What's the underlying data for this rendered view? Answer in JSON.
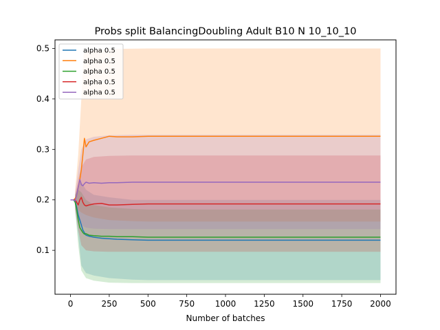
{
  "chart_data": {
    "type": "line",
    "title": "Probs split BalancingDoubling Adult B10 N 10_10_10",
    "xlabel": "Number of batches",
    "ylabel": "",
    "xlim": [
      -100,
      2100
    ],
    "ylim": [
      0.013,
      0.517
    ],
    "xticks": [
      0,
      250,
      500,
      750,
      1000,
      1250,
      1500,
      1750,
      2000
    ],
    "yticks": [
      0.1,
      0.2,
      0.3,
      0.4,
      0.5
    ],
    "ytick_labels": [
      "0.1",
      "0.2",
      "0.3",
      "0.4",
      "0.5"
    ],
    "grid": false,
    "legend_position": "top-left",
    "series": [
      {
        "name": "alpha 0.5",
        "color": "#1f77b4",
        "points": [
          [
            0,
            0.2
          ],
          [
            20,
            0.2
          ],
          [
            30,
            0.198
          ],
          [
            40,
            0.185
          ],
          [
            50,
            0.17
          ],
          [
            60,
            0.16
          ],
          [
            70,
            0.15
          ],
          [
            80,
            0.14
          ],
          [
            90,
            0.135
          ],
          [
            100,
            0.13
          ],
          [
            120,
            0.128
          ],
          [
            150,
            0.126
          ],
          [
            200,
            0.124
          ],
          [
            250,
            0.123
          ],
          [
            300,
            0.122
          ],
          [
            400,
            0.121
          ],
          [
            500,
            0.12
          ],
          [
            1000,
            0.12
          ],
          [
            2000,
            0.12
          ]
        ],
        "band_lower": [
          [
            30,
            0.18
          ],
          [
            50,
            0.13
          ],
          [
            70,
            0.07
          ],
          [
            100,
            0.055
          ],
          [
            150,
            0.05
          ],
          [
            250,
            0.045
          ],
          [
            400,
            0.042
          ],
          [
            500,
            0.041
          ],
          [
            1000,
            0.041
          ],
          [
            2000,
            0.041
          ]
        ],
        "band_upper": [
          [
            30,
            0.21
          ],
          [
            50,
            0.23
          ],
          [
            70,
            0.235
          ],
          [
            100,
            0.22
          ],
          [
            150,
            0.21
          ],
          [
            250,
            0.205
          ],
          [
            400,
            0.2
          ],
          [
            500,
            0.2
          ],
          [
            1000,
            0.2
          ],
          [
            2000,
            0.2
          ]
        ]
      },
      {
        "name": "alpha 0.5",
        "color": "#ff7f0e",
        "points": [
          [
            0,
            0.2
          ],
          [
            20,
            0.2
          ],
          [
            30,
            0.203
          ],
          [
            40,
            0.21
          ],
          [
            50,
            0.225
          ],
          [
            60,
            0.24
          ],
          [
            70,
            0.26
          ],
          [
            80,
            0.29
          ],
          [
            90,
            0.322
          ],
          [
            100,
            0.305
          ],
          [
            120,
            0.315
          ],
          [
            150,
            0.318
          ],
          [
            200,
            0.322
          ],
          [
            250,
            0.326
          ],
          [
            300,
            0.325
          ],
          [
            400,
            0.325
          ],
          [
            500,
            0.326
          ],
          [
            1000,
            0.326
          ],
          [
            2000,
            0.326
          ]
        ],
        "band_lower": [
          [
            30,
            0.19
          ],
          [
            50,
            0.18
          ],
          [
            70,
            0.175
          ],
          [
            100,
            0.17
          ],
          [
            150,
            0.165
          ],
          [
            250,
            0.16
          ],
          [
            400,
            0.158
          ],
          [
            500,
            0.157
          ],
          [
            1000,
            0.157
          ],
          [
            2000,
            0.157
          ]
        ],
        "band_upper": [
          [
            30,
            0.22
          ],
          [
            50,
            0.29
          ],
          [
            70,
            0.4
          ],
          [
            85,
            0.49
          ],
          [
            100,
            0.495
          ],
          [
            150,
            0.497
          ],
          [
            250,
            0.499
          ],
          [
            500,
            0.5
          ],
          [
            1000,
            0.5
          ],
          [
            2000,
            0.5
          ]
        ]
      },
      {
        "name": "alpha 0.5",
        "color": "#2ca02c",
        "points": [
          [
            0,
            0.2
          ],
          [
            20,
            0.2
          ],
          [
            30,
            0.195
          ],
          [
            40,
            0.18
          ],
          [
            50,
            0.16
          ],
          [
            60,
            0.145
          ],
          [
            70,
            0.14
          ],
          [
            80,
            0.135
          ],
          [
            90,
            0.132
          ],
          [
            100,
            0.133
          ],
          [
            120,
            0.13
          ],
          [
            150,
            0.129
          ],
          [
            200,
            0.128
          ],
          [
            250,
            0.128
          ],
          [
            300,
            0.127
          ],
          [
            400,
            0.127
          ],
          [
            500,
            0.126
          ],
          [
            1000,
            0.126
          ],
          [
            2000,
            0.126
          ]
        ],
        "band_lower": [
          [
            30,
            0.18
          ],
          [
            50,
            0.11
          ],
          [
            70,
            0.06
          ],
          [
            100,
            0.045
          ],
          [
            150,
            0.04
          ],
          [
            250,
            0.036
          ],
          [
            400,
            0.035
          ],
          [
            500,
            0.035
          ],
          [
            1000,
            0.035
          ],
          [
            2000,
            0.035
          ]
        ],
        "band_upper": [
          [
            30,
            0.21
          ],
          [
            50,
            0.22
          ],
          [
            70,
            0.215
          ],
          [
            100,
            0.2
          ],
          [
            150,
            0.19
          ],
          [
            250,
            0.185
          ],
          [
            400,
            0.182
          ],
          [
            500,
            0.181
          ],
          [
            1000,
            0.181
          ],
          [
            2000,
            0.181
          ]
        ]
      },
      {
        "name": "alpha 0.5",
        "color": "#d62728",
        "points": [
          [
            0,
            0.2
          ],
          [
            20,
            0.2
          ],
          [
            30,
            0.2
          ],
          [
            40,
            0.195
          ],
          [
            50,
            0.19
          ],
          [
            60,
            0.2
          ],
          [
            70,
            0.205
          ],
          [
            80,
            0.195
          ],
          [
            90,
            0.19
          ],
          [
            100,
            0.188
          ],
          [
            120,
            0.19
          ],
          [
            150,
            0.192
          ],
          [
            200,
            0.193
          ],
          [
            250,
            0.19
          ],
          [
            300,
            0.19
          ],
          [
            400,
            0.191
          ],
          [
            500,
            0.192
          ],
          [
            1000,
            0.192
          ],
          [
            2000,
            0.192
          ]
        ],
        "band_lower": [
          [
            30,
            0.18
          ],
          [
            50,
            0.14
          ],
          [
            70,
            0.11
          ],
          [
            100,
            0.1
          ],
          [
            150,
            0.098
          ],
          [
            250,
            0.097
          ],
          [
            400,
            0.097
          ],
          [
            500,
            0.097
          ],
          [
            1000,
            0.097
          ],
          [
            2000,
            0.097
          ]
        ],
        "band_upper": [
          [
            30,
            0.21
          ],
          [
            50,
            0.24
          ],
          [
            70,
            0.265
          ],
          [
            100,
            0.28
          ],
          [
            150,
            0.285
          ],
          [
            250,
            0.287
          ],
          [
            400,
            0.288
          ],
          [
            500,
            0.288
          ],
          [
            1000,
            0.288
          ],
          [
            2000,
            0.288
          ]
        ]
      },
      {
        "name": "alpha 0.5",
        "color": "#9467bd",
        "points": [
          [
            0,
            0.2
          ],
          [
            20,
            0.2
          ],
          [
            30,
            0.198
          ],
          [
            40,
            0.21
          ],
          [
            50,
            0.225
          ],
          [
            60,
            0.24
          ],
          [
            70,
            0.23
          ],
          [
            80,
            0.228
          ],
          [
            90,
            0.232
          ],
          [
            100,
            0.235
          ],
          [
            120,
            0.233
          ],
          [
            150,
            0.234
          ],
          [
            200,
            0.233
          ],
          [
            250,
            0.234
          ],
          [
            300,
            0.234
          ],
          [
            400,
            0.235
          ],
          [
            500,
            0.235
          ],
          [
            1000,
            0.235
          ],
          [
            2000,
            0.235
          ]
        ],
        "band_lower": [
          [
            30,
            0.185
          ],
          [
            50,
            0.16
          ],
          [
            70,
            0.15
          ],
          [
            100,
            0.145
          ],
          [
            150,
            0.143
          ],
          [
            250,
            0.142
          ],
          [
            400,
            0.142
          ],
          [
            500,
            0.142
          ],
          [
            1000,
            0.142
          ],
          [
            2000,
            0.142
          ]
        ],
        "band_upper": [
          [
            30,
            0.215
          ],
          [
            50,
            0.26
          ],
          [
            70,
            0.3
          ],
          [
            100,
            0.32
          ],
          [
            150,
            0.325
          ],
          [
            250,
            0.328
          ],
          [
            400,
            0.329
          ],
          [
            500,
            0.329
          ],
          [
            1000,
            0.329
          ],
          [
            2000,
            0.329
          ]
        ]
      }
    ]
  }
}
